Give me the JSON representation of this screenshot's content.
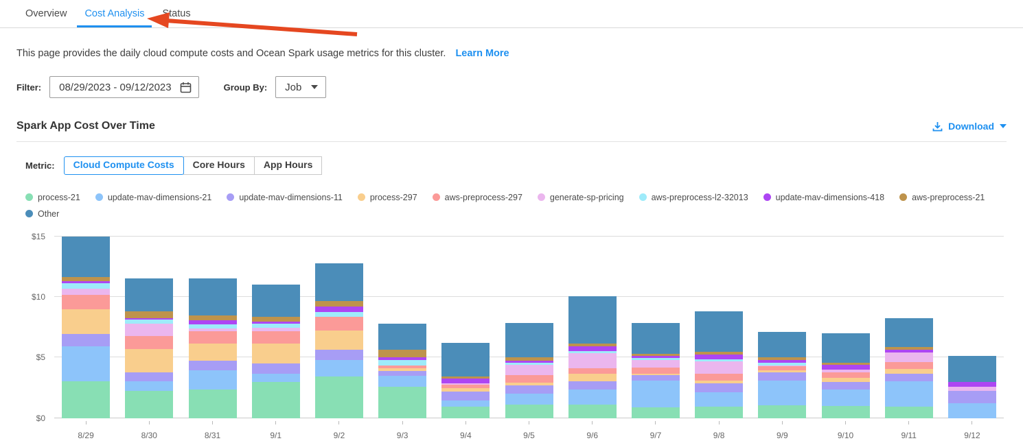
{
  "tabs": [
    {
      "label": "Overview",
      "active": false
    },
    {
      "label": "Cost Analysis",
      "active": true
    },
    {
      "label": "Status",
      "active": false
    }
  ],
  "description": {
    "text": "This page provides the daily cloud compute costs and Ocean Spark usage metrics for this cluster.",
    "link": "Learn More"
  },
  "filter": {
    "label": "Filter:",
    "date_range": "08/29/2023  -  09/12/2023",
    "group_by_label": "Group By:",
    "group_by_value": "Job"
  },
  "section": {
    "title": "Spark App Cost Over Time",
    "download_label": "Download"
  },
  "metric": {
    "label": "Metric:",
    "options": [
      {
        "label": "Cloud Compute Costs",
        "active": true
      },
      {
        "label": "Core Hours",
        "active": false
      },
      {
        "label": "App Hours",
        "active": false
      }
    ]
  },
  "colors": {
    "accent": "#1e90f0",
    "arrow": "#e54720",
    "gridline": "#dcdcdc",
    "axis_text": "#666666"
  },
  "chart_data": {
    "type": "bar",
    "stacked": true,
    "title": "Spark App Cost Over Time",
    "xlabel": "",
    "ylabel": "Cloud Compute Costs ($)",
    "ylim": [
      0,
      15
    ],
    "ytick_values": [
      0,
      5,
      10,
      15
    ],
    "ytick_labels": [
      "$0",
      "$5",
      "$10",
      "$15"
    ],
    "grid": true,
    "legend_position": "top",
    "categories": [
      "8/29",
      "8/30",
      "8/31",
      "9/1",
      "9/2",
      "9/3",
      "9/4",
      "9/5",
      "9/6",
      "9/7",
      "9/8",
      "9/9",
      "9/10",
      "9/11",
      "9/12"
    ],
    "series": [
      {
        "name": "process-21",
        "color": "#88dfb4",
        "values": [
          3.05,
          2.26,
          2.36,
          2.98,
          3.45,
          2.55,
          0.91,
          1.09,
          1.09,
          0.85,
          0.91,
          1.04,
          1.0,
          0.91,
          0
        ]
      },
      {
        "name": "update-mav-dimensions-21",
        "color": "#8dc4fa",
        "values": [
          2.85,
          0.75,
          1.58,
          0.7,
          1.32,
          0.94,
          0.51,
          0.91,
          1.26,
          2.23,
          1.22,
          2.07,
          1.36,
          2.13,
          1.23
        ]
      },
      {
        "name": "update-mav-dimensions-11",
        "color": "#a79df5",
        "values": [
          1.05,
          0.75,
          0.77,
          0.81,
          0.85,
          0.38,
          0.75,
          0.7,
          0.68,
          0.47,
          0.72,
          0.63,
          0.62,
          0.64,
          1.0
        ]
      },
      {
        "name": "process-297",
        "color": "#f9ce8d",
        "values": [
          2.0,
          1.94,
          1.41,
          1.64,
          1.6,
          0.23,
          0.3,
          0.23,
          0.64,
          0.13,
          0.26,
          0.18,
          0.32,
          0.38,
          0
        ]
      },
      {
        "name": "aws-preprocess-297",
        "color": "#fb9a98",
        "values": [
          1.2,
          1.04,
          1.06,
          1.06,
          1.13,
          0.23,
          0.26,
          0.62,
          0.43,
          0.49,
          0.53,
          0.33,
          0.49,
          0.56,
          0
        ]
      },
      {
        "name": "generate-sp-pricing",
        "color": "#ebb6ee",
        "values": [
          0.55,
          1.04,
          0.19,
          0.26,
          0,
          0,
          0.15,
          0.85,
          1.26,
          0.6,
          1.04,
          0.11,
          0.19,
          0.81,
          0.37
        ]
      },
      {
        "name": "aws-preprocess-l2-32013",
        "color": "#9eebfa",
        "values": [
          0.45,
          0.32,
          0.34,
          0.34,
          0.41,
          0.45,
          0,
          0.15,
          0.19,
          0.19,
          0.19,
          0.22,
          0,
          0,
          0
        ]
      },
      {
        "name": "update-mav-dimensions-418",
        "color": "#ad46f3",
        "values": [
          0.15,
          0.15,
          0.38,
          0.19,
          0.44,
          0.23,
          0.38,
          0.19,
          0.38,
          0.15,
          0.38,
          0.19,
          0.42,
          0.19,
          0.38
        ]
      },
      {
        "name": "aws-preprocess-21",
        "color": "#be934c",
        "values": [
          0.35,
          0.57,
          0.38,
          0.38,
          0.47,
          0.62,
          0.19,
          0.26,
          0.19,
          0.19,
          0.24,
          0.23,
          0.18,
          0.25,
          0
        ]
      },
      {
        "name": "Other",
        "color": "#4b8db9",
        "values": [
          3.35,
          2.68,
          3.05,
          2.64,
          3.11,
          2.13,
          2.77,
          2.83,
          3.92,
          2.53,
          3.34,
          2.13,
          2.4,
          2.39,
          2.17
        ]
      }
    ]
  }
}
